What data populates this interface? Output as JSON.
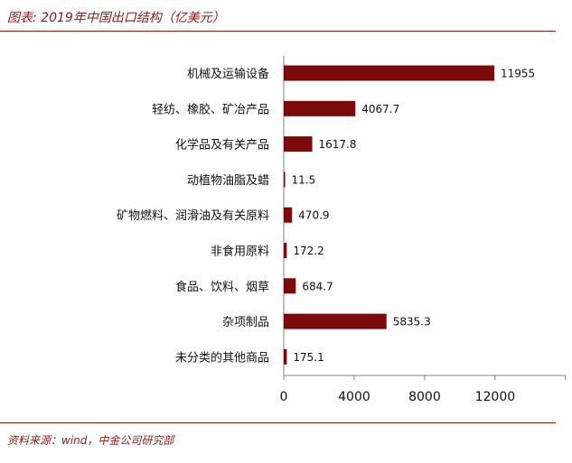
{
  "figure": {
    "title": "图表: 2019年中国出口结构（亿美元）",
    "source": "资料来源：wind，中金公司研究部",
    "bar_color": "#7b0a0a",
    "accent_color": "#8a1a1a"
  },
  "chart_data": {
    "type": "bar",
    "orientation": "horizontal",
    "title": "2019年中国出口结构（亿美元）",
    "categories": [
      "机械及运输设备",
      "轻纺、橡胶、矿冶产品",
      "化学品及有关产品",
      "动植物油脂及蜡",
      "矿物燃料、润滑油及有关原料",
      "非食用原料",
      "食品、饮料、烟草",
      "杂项制品",
      "未分类的其他商品"
    ],
    "values": [
      11955,
      4067.7,
      1617.8,
      11.5,
      470.9,
      172.2,
      684.7,
      5835.3,
      175.1
    ],
    "value_labels": [
      "11955",
      "4067.7",
      "1617.8",
      "11.5",
      "470.9",
      "172.2",
      "684.7",
      "5835.3",
      "175.1"
    ],
    "xlim": [
      0,
      16000
    ],
    "xticks": [
      0,
      4000,
      8000,
      12000
    ],
    "xlabel": "",
    "ylabel": "",
    "grid": false,
    "legend": "none"
  }
}
